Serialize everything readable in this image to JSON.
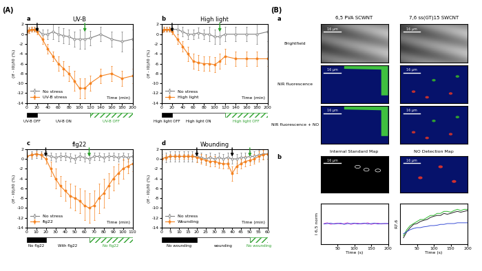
{
  "panel_labels": [
    "(A)",
    "(B)"
  ],
  "chart_data": [
    {
      "type": "line",
      "panel": "a",
      "title": "UV-B",
      "ylabel": "(If - I0)/I0 (%)",
      "xlabel": "Time (min)",
      "xlim": [
        0,
        200
      ],
      "xticks": [
        0,
        20,
        40,
        60,
        80,
        100,
        120,
        140,
        160,
        180,
        200
      ],
      "ylim": [
        -14,
        2
      ],
      "yticks": [
        -14,
        -12,
        -10,
        -8,
        -6,
        -4,
        -2,
        0,
        2
      ],
      "legend": "lower left",
      "x": [
        0,
        5,
        10,
        15,
        20,
        30,
        40,
        50,
        60,
        70,
        80,
        90,
        100,
        110,
        120,
        140,
        160,
        180,
        200
      ],
      "series": [
        {
          "name": "No stress",
          "color": "#7f7f7f",
          "marker": "open_circle",
          "values": [
            0.5,
            0.8,
            1,
            1,
            1,
            0,
            0,
            0.5,
            0,
            -0.3,
            -0.5,
            -1,
            -1,
            -1,
            -0.8,
            0,
            -1,
            -1.5,
            -1
          ],
          "errors": [
            0.5,
            0.5,
            0.5,
            0.5,
            0.5,
            1,
            1,
            1.5,
            1.5,
            1.5,
            1.5,
            1.5,
            2,
            2,
            1.5,
            1.5,
            1.5,
            2,
            2
          ]
        },
        {
          "name": "UV-B stress",
          "color": "#f5821f",
          "marker": "circle",
          "values": [
            0.5,
            0.8,
            1,
            1,
            0.5,
            -1,
            -3,
            -4.5,
            -6,
            -7,
            -8,
            -9.5,
            -11,
            -11,
            -10,
            -8.5,
            -8,
            -9,
            -8.5
          ],
          "errors": [
            0.5,
            0.5,
            0.5,
            0.5,
            0.5,
            1,
            1,
            1,
            1.5,
            1.5,
            1.5,
            2,
            2,
            2,
            1.5,
            1.5,
            1.5,
            1.5,
            1.5
          ]
        }
      ],
      "arrows": [
        {
          "x": 20,
          "color": "black"
        },
        {
          "x": 110,
          "color": "#2ca02c"
        }
      ],
      "phases": [
        {
          "label": "UV-B OFF",
          "start": 0,
          "end": 20,
          "type": "off",
          "color": "black"
        },
        {
          "label": "UV-B ON",
          "start": 20,
          "end": 120,
          "type": "on",
          "color": "white"
        },
        {
          "label": "UV-B OFF",
          "start": 120,
          "end": 200,
          "type": "recovery",
          "color": "#2ca02c"
        }
      ]
    },
    {
      "type": "line",
      "panel": "b",
      "title": "High light",
      "ylabel": "(If - I0)/I0 (%)",
      "xlabel": "Time (min)",
      "xlim": [
        0,
        200
      ],
      "xticks": [
        0,
        20,
        40,
        60,
        80,
        100,
        120,
        140,
        160,
        180,
        200
      ],
      "ylim": [
        -14,
        2
      ],
      "yticks": [
        -14,
        -12,
        -10,
        -8,
        -6,
        -4,
        -2,
        0,
        2
      ],
      "legend": "lower left",
      "x": [
        0,
        5,
        10,
        15,
        20,
        30,
        40,
        50,
        60,
        70,
        80,
        90,
        100,
        110,
        120,
        140,
        160,
        180,
        200
      ],
      "series": [
        {
          "name": "No stress",
          "color": "#7f7f7f",
          "marker": "open_circle",
          "values": [
            0.5,
            1,
            1,
            1,
            1,
            1,
            0.5,
            0,
            0,
            0.3,
            0,
            0,
            -0.5,
            -0.5,
            0,
            0,
            0,
            0,
            0.5
          ],
          "errors": [
            0.5,
            0.5,
            0.5,
            0.5,
            0.5,
            1,
            1,
            1,
            1,
            1,
            1,
            1.5,
            1.5,
            1.5,
            1.5,
            1.5,
            1.5,
            2,
            2
          ]
        },
        {
          "name": "High light",
          "color": "#f5821f",
          "marker": "circle",
          "values": [
            0.5,
            1,
            1,
            1,
            0.5,
            -1,
            -2.5,
            -4,
            -5.5,
            -5.8,
            -6,
            -6,
            -6.2,
            -5.5,
            -4.5,
            -5,
            -5,
            -5,
            -5
          ],
          "errors": [
            0.5,
            0.5,
            0.5,
            0.5,
            0.5,
            1,
            1,
            1.5,
            1.5,
            1.5,
            1.5,
            1.5,
            1.5,
            1.5,
            1.5,
            1.5,
            1.5,
            1.5,
            1.5
          ]
        }
      ],
      "arrows": [
        {
          "x": 20,
          "color": "black"
        },
        {
          "x": 110,
          "color": "#2ca02c"
        }
      ],
      "phases": [
        {
          "label": "High light OFF",
          "start": 0,
          "end": 20,
          "type": "off",
          "color": "black"
        },
        {
          "label": "High light ON",
          "start": 20,
          "end": 120,
          "type": "on",
          "color": "white"
        },
        {
          "label": "High light OFF",
          "start": 120,
          "end": 200,
          "type": "recovery",
          "color": "#2ca02c"
        }
      ]
    },
    {
      "type": "line",
      "panel": "c",
      "title": "flg22",
      "ylabel": "(If - I0)/I0 (%)",
      "xlabel": "Time (min)",
      "xlim": [
        0,
        110
      ],
      "xticks": [
        0,
        10,
        20,
        30,
        40,
        50,
        60,
        70,
        80,
        90,
        100,
        110
      ],
      "ylim": [
        -14,
        2
      ],
      "yticks": [
        -14,
        -12,
        -10,
        -8,
        -6,
        -4,
        -2,
        0,
        2
      ],
      "legend": "lower left",
      "x": [
        0,
        5,
        10,
        15,
        20,
        25,
        30,
        35,
        40,
        45,
        50,
        55,
        60,
        65,
        70,
        75,
        80,
        85,
        90,
        95,
        100,
        105,
        110
      ],
      "series": [
        {
          "name": "No stress",
          "color": "#7f7f7f",
          "marker": "open_circle",
          "values": [
            0.5,
            0.8,
            1,
            0.8,
            0.8,
            0.5,
            0.3,
            0.5,
            0.5,
            0.3,
            0,
            0.5,
            0.3,
            0,
            0.5,
            0.5,
            0.3,
            0.5,
            0.5,
            0.3,
            0.5,
            0.3,
            0.5
          ],
          "errors": [
            0.8,
            0.8,
            0.8,
            0.8,
            0.8,
            0.8,
            0.8,
            0.8,
            0.8,
            0.8,
            0.8,
            0.8,
            0.8,
            0.8,
            0.8,
            0.8,
            0.8,
            0.8,
            0.8,
            0.8,
            0.8,
            0.8,
            0.8
          ]
        },
        {
          "name": "flg22",
          "color": "#f5821f",
          "marker": "circle",
          "values": [
            0.5,
            0.8,
            1,
            0.8,
            0,
            -2,
            -4,
            -5.5,
            -6.5,
            -7.5,
            -8,
            -8.5,
            -9.5,
            -10,
            -9.5,
            -8,
            -7,
            -5.5,
            -4,
            -3,
            -2,
            -1.5,
            -1
          ],
          "errors": [
            0.5,
            0.5,
            0.5,
            0.5,
            1,
            1.5,
            2,
            2,
            2,
            2.5,
            2.5,
            2.5,
            3,
            3,
            3,
            3,
            3,
            2.5,
            2.5,
            2,
            2,
            1.5,
            1.5
          ]
        }
      ],
      "arrows": [
        {
          "x": 20,
          "color": "black"
        },
        {
          "x": 65,
          "color": "#2ca02c"
        }
      ],
      "phases": [
        {
          "label": "No flg22",
          "start": 0,
          "end": 20,
          "type": "off",
          "color": "black"
        },
        {
          "label": "With flg22",
          "start": 20,
          "end": 65,
          "type": "on",
          "color": "white"
        },
        {
          "label": "No flg22",
          "start": 65,
          "end": 110,
          "type": "recovery",
          "color": "#2ca02c"
        }
      ]
    },
    {
      "type": "line",
      "panel": "d",
      "title": "Wounding",
      "ylabel": "(If - I0)/I0 (%)",
      "xlabel": "Time (min)",
      "xlim": [
        0,
        60
      ],
      "xticks": [
        0,
        5,
        10,
        15,
        20,
        25,
        30,
        35,
        40,
        45,
        50,
        55,
        60
      ],
      "ylim": [
        -14,
        2
      ],
      "yticks": [
        -14,
        -12,
        -10,
        -8,
        -6,
        -4,
        -2,
        0,
        2
      ],
      "legend": "lower left",
      "x": [
        0,
        2.5,
        5,
        7.5,
        10,
        12.5,
        15,
        17.5,
        20,
        22.5,
        25,
        27.5,
        30,
        32.5,
        35,
        37.5,
        40,
        42.5,
        45,
        47.5,
        50,
        52.5,
        55,
        57.5,
        60
      ],
      "series": [
        {
          "name": "No stress",
          "color": "#7f7f7f",
          "marker": "open_circle",
          "values": [
            0,
            0.3,
            0.5,
            0.5,
            0.5,
            0.5,
            0.5,
            0.5,
            0.5,
            0.3,
            0,
            0.3,
            0,
            0.3,
            0,
            0.3,
            0,
            0,
            0.3,
            0.3,
            0.5,
            0.5,
            0.8,
            1,
            1
          ],
          "errors": [
            1,
            1,
            1,
            1,
            1,
            1,
            1,
            1,
            1,
            1,
            1,
            1,
            1,
            1,
            1,
            1,
            1,
            1,
            1,
            1,
            1,
            1,
            1,
            1,
            1
          ]
        },
        {
          "name": "Wounding",
          "color": "#f5821f",
          "marker": "circle",
          "values": [
            0,
            0.3,
            0.5,
            0.5,
            0.5,
            0.5,
            0.5,
            0.5,
            0.3,
            0,
            -0.3,
            -0.5,
            -0.5,
            -0.8,
            -1,
            -1,
            -3,
            -1.5,
            -1,
            -0.5,
            -0.3,
            0,
            0.5,
            0.8,
            1
          ],
          "errors": [
            0.5,
            0.5,
            0.5,
            0.5,
            0.5,
            0.5,
            0.5,
            0.5,
            1,
            1,
            1,
            1,
            1,
            1,
            1,
            1,
            1.5,
            1.5,
            1,
            1,
            1,
            1,
            1,
            1,
            1
          ]
        }
      ],
      "arrows": [
        {
          "x": 20,
          "color": "black"
        },
        {
          "x": 40,
          "color": "black"
        },
        {
          "x": 50,
          "color": "#2ca02c"
        }
      ],
      "phases": [
        {
          "label": "No wounding",
          "start": 0,
          "end": 20,
          "type": "off",
          "color": "black"
        },
        {
          "label": "wounding",
          "start": 20,
          "end": 50,
          "type": "on",
          "color": "white"
        },
        {
          "label": "No wounding",
          "start": 50,
          "end": 60,
          "type": "recovery",
          "color": "#2ca02c"
        }
      ]
    },
    {
      "type": "line",
      "ylabel": "I 6,5 norm",
      "xlabel": "Time (s)",
      "tick_labels": "x",
      "xlim": [
        0,
        200
      ],
      "xticks": [
        50,
        100,
        150,
        200
      ],
      "ylim": [
        0.5,
        1.5
      ],
      "yticks": [],
      "x": [
        10,
        20,
        30,
        40,
        50,
        60,
        70,
        80,
        90,
        100,
        110,
        120,
        130,
        140,
        150,
        160,
        170,
        180,
        190,
        200
      ],
      "series": [
        {
          "color": "#d63fd6",
          "values": [
            1,
            1.02,
            0.98,
            1,
            1.01,
            0.99,
            1,
            1.02,
            0.98,
            1,
            1.01,
            0.99,
            1,
            1.02,
            0.98,
            1,
            1.01,
            0.99,
            1,
            1
          ]
        },
        {
          "color": "#3a4fd6",
          "values": [
            0.99,
            1,
            1.01,
            0.99,
            1,
            1.01,
            0.98,
            1,
            1,
            1.01,
            0.99,
            1,
            1.01,
            0.99,
            1,
            1.01,
            0.99,
            1,
            1,
            1
          ]
        }
      ]
    },
    {
      "type": "line",
      "ylabel": "R7,6",
      "xlabel": "Time (s)",
      "tick_labels": "x",
      "xlim": [
        0,
        200
      ],
      "xticks": [
        50,
        100,
        150,
        200
      ],
      "ylim": [
        0.6,
        1.6
      ],
      "yticks": [],
      "x": [
        10,
        20,
        30,
        40,
        50,
        60,
        70,
        80,
        90,
        100,
        110,
        120,
        130,
        140,
        150,
        160,
        170,
        180,
        190,
        200
      ],
      "series": [
        {
          "color": "#2db82d",
          "values": [
            0.8,
            0.95,
            1.05,
            1.1,
            1.15,
            1.2,
            1.2,
            1.25,
            1.3,
            1.3,
            1.35,
            1.35,
            1.4,
            1.4,
            1.38,
            1.42,
            1.45,
            1.42,
            1.45,
            1.45
          ]
        },
        {
          "color": "#222222",
          "values": [
            0.75,
            0.9,
            1.0,
            1.08,
            1.1,
            1.15,
            1.18,
            1.2,
            1.25,
            1.28,
            1.3,
            1.3,
            1.35,
            1.33,
            1.35,
            1.38,
            1.4,
            1.38,
            1.4,
            1.42
          ]
        },
        {
          "color": "#3a4fd6",
          "values": [
            0.85,
            0.9,
            0.95,
            0.98,
            1,
            1,
            1.02,
            1.03,
            1.05,
            1.05,
            1.06,
            1.08,
            1.08,
            1.1,
            1.1,
            1.1,
            1.12,
            1.12,
            1.12,
            1.12
          ]
        }
      ]
    }
  ],
  "images": {
    "section_a": "a",
    "section_b": "b",
    "columns": [
      "6,5 PVA SCWNT",
      "7,6 ss(GT)15 SWCNT"
    ],
    "rows": [
      "Brightfield",
      "NIR fluorescence",
      "NIR fluorescence + NO"
    ],
    "maps": [
      "Internal Standard Map",
      "NO Detection Map"
    ],
    "scale_bar": "16 μm"
  }
}
